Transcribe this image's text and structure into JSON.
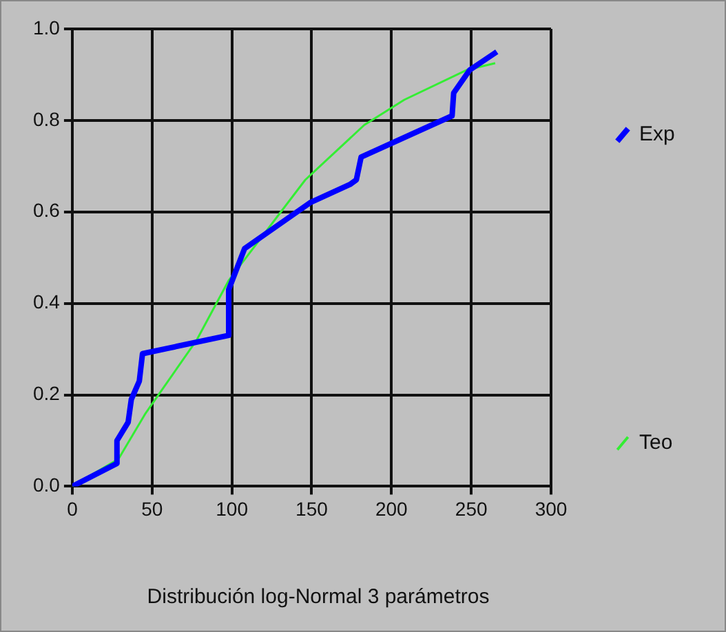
{
  "chart_data": {
    "type": "line",
    "xlabel": "Distribución log-Normal 3 parámetros",
    "xlim": [
      0,
      300
    ],
    "xticks": [
      0,
      50,
      100,
      150,
      200,
      250,
      300
    ],
    "ylim": [
      0,
      1
    ],
    "yticks": [
      {
        "value": 0,
        "label": "0.0"
      },
      {
        "value": 0.2,
        "label": "0.2"
      },
      {
        "value": 0.4,
        "label": "0.4"
      },
      {
        "value": 0.6,
        "label": "0.6"
      },
      {
        "value": 0.8,
        "label": "0.8"
      },
      {
        "value": 1,
        "label": "1.0"
      }
    ],
    "grid": true,
    "legend": "right",
    "marker": "none",
    "series": [
      {
        "name": "Exp",
        "color": "#0000ff",
        "x": [
          0,
          28,
          28,
          35,
          37,
          42,
          44,
          98,
          98,
          108,
          149,
          174,
          178,
          181,
          238,
          239,
          249,
          266
        ],
        "values": [
          0,
          0.05,
          0.1,
          0.14,
          0.19,
          0.23,
          0.29,
          0.33,
          0.43,
          0.52,
          0.62,
          0.66,
          0.67,
          0.72,
          0.81,
          0.86,
          0.91,
          0.95
        ]
      },
      {
        "name": "Teo",
        "color": "#33ee33",
        "x": [
          0,
          29,
          46,
          78,
          98,
          146,
          183,
          208,
          247,
          265
        ],
        "values": [
          0,
          0.06,
          0.16,
          0.32,
          0.45,
          0.67,
          0.79,
          0.845,
          0.91,
          0.925
        ]
      }
    ]
  }
}
